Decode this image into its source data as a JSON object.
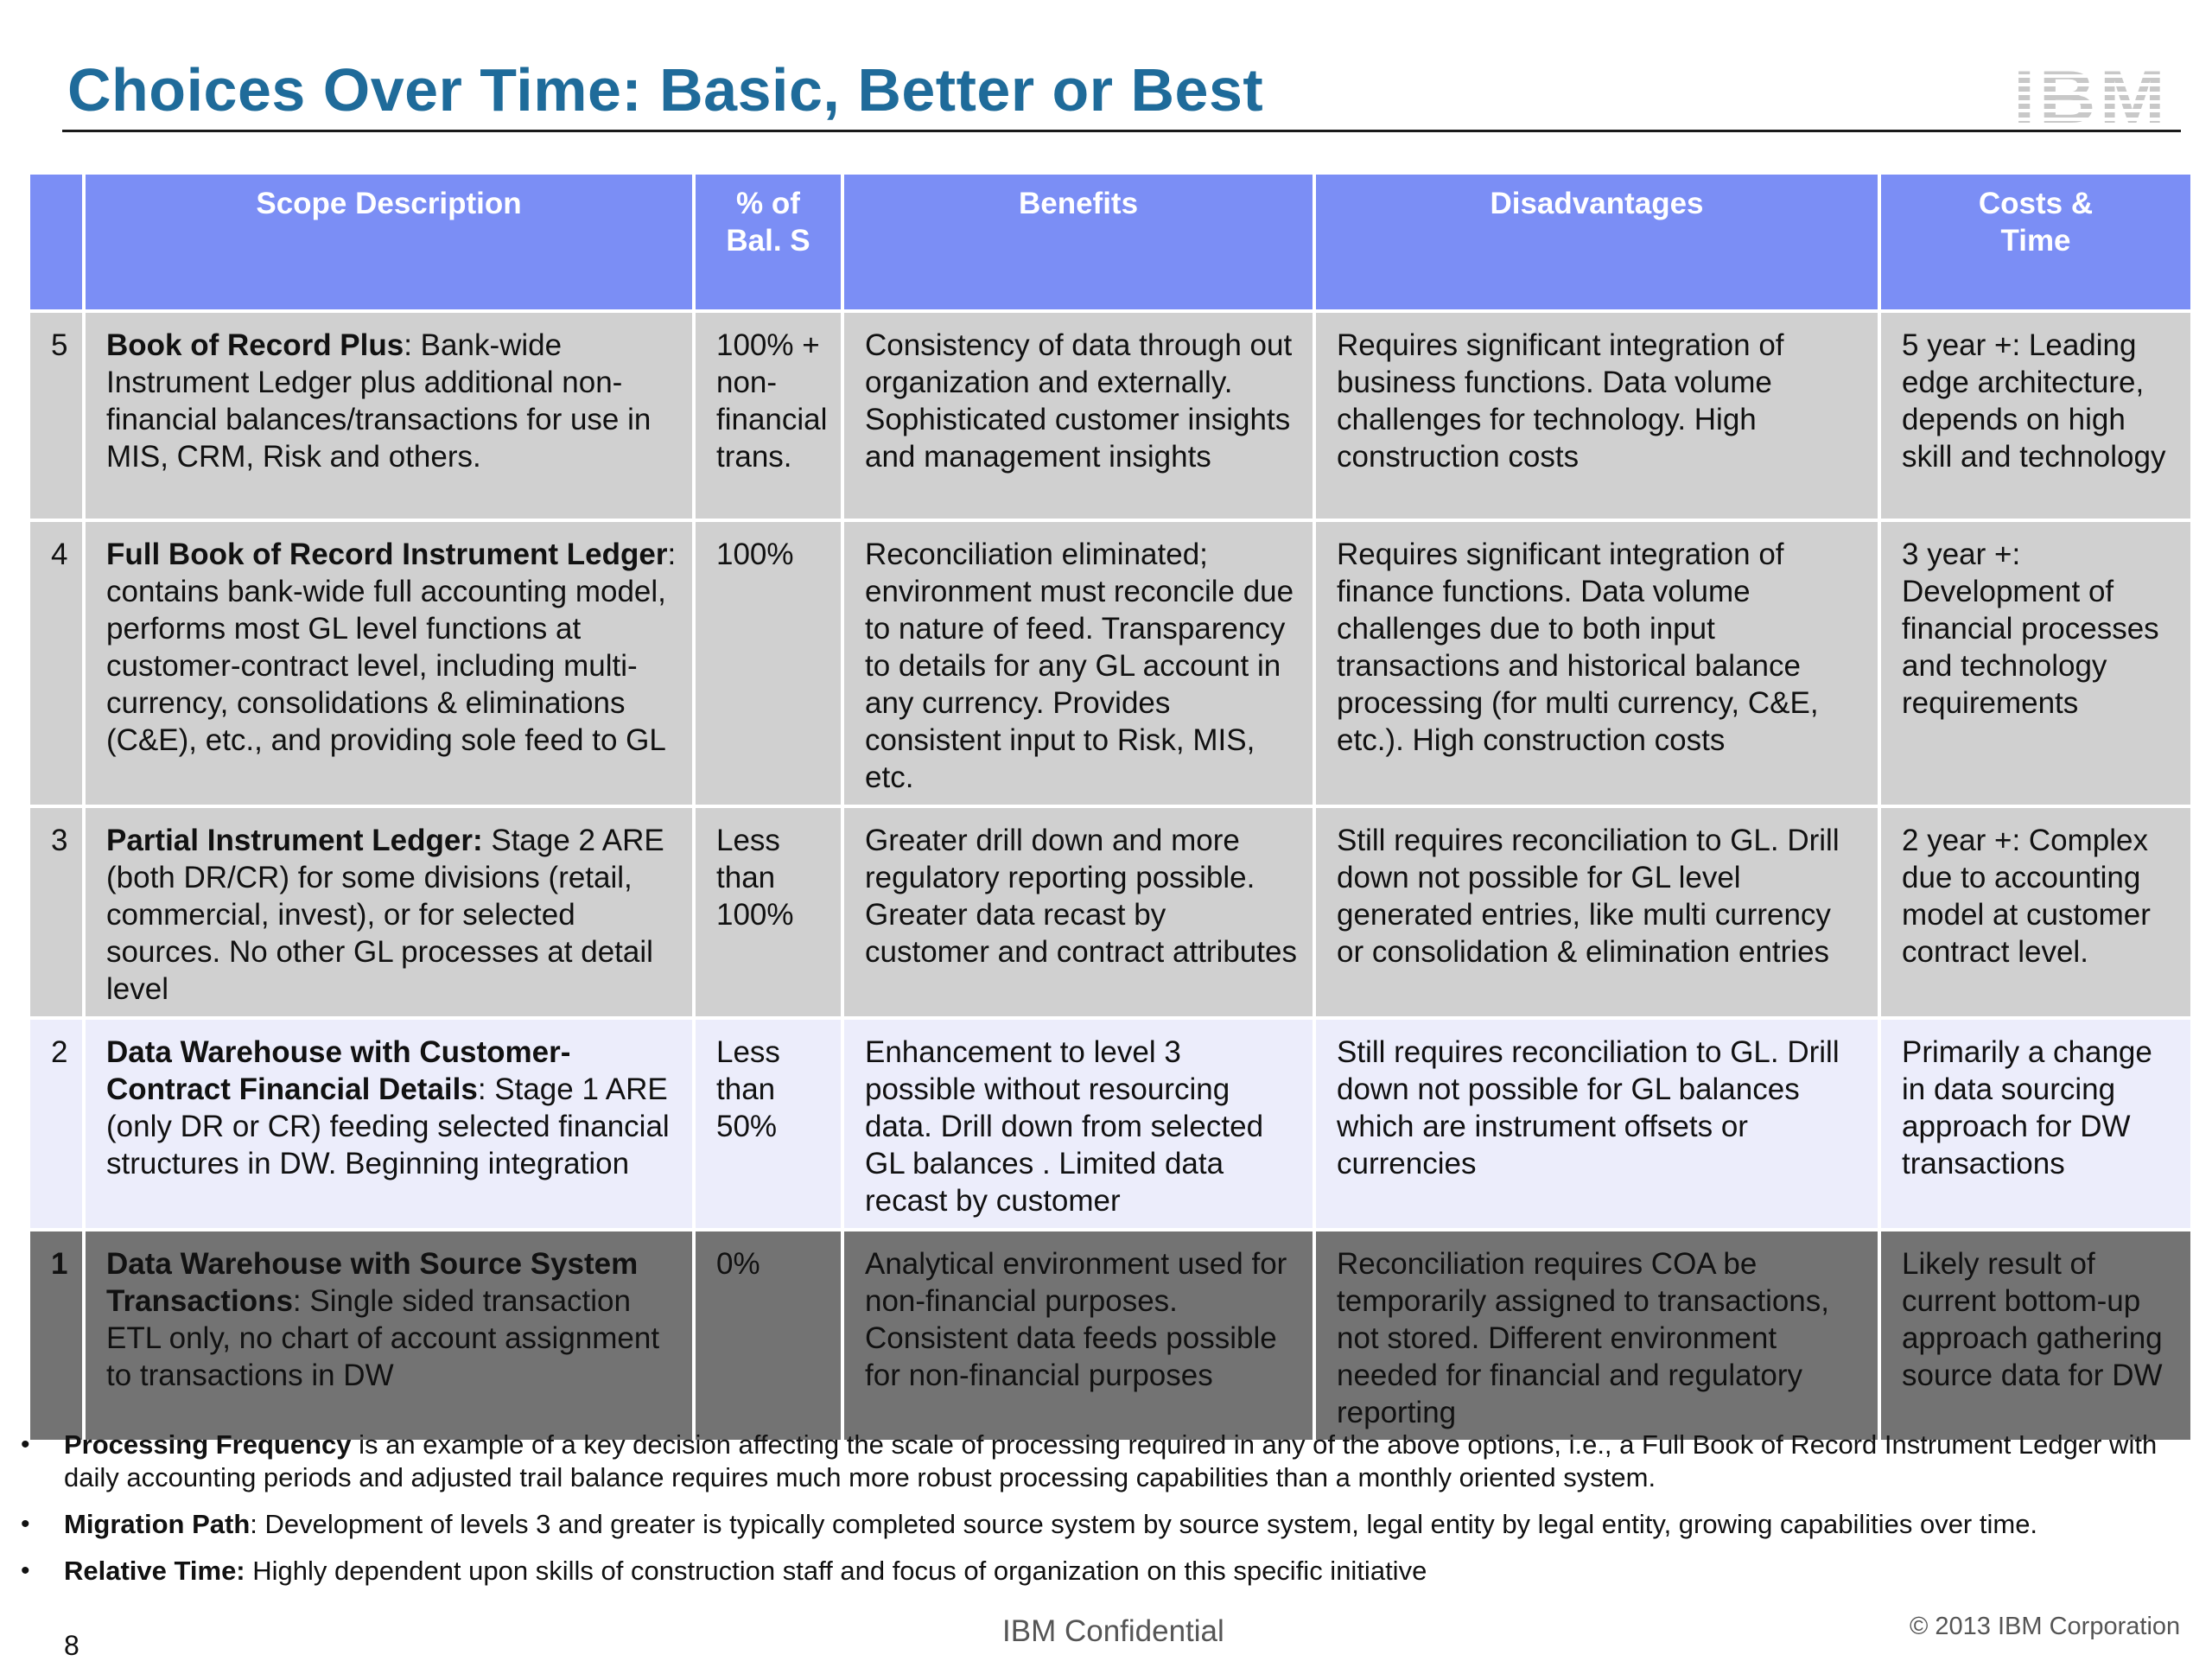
{
  "header": {
    "title": "Choices Over Time: Basic, Better or Best",
    "logo_text": "IBM"
  },
  "table": {
    "headers": {
      "level": "",
      "scope": "Scope Description",
      "pct_line1": "% of",
      "pct_line2": "Bal. S",
      "benefits": "Benefits",
      "disadvantages": "Disadvantages",
      "costs_line1": "Costs  &",
      "costs_line2": "Time"
    },
    "rows": [
      {
        "level": "5",
        "scope_title": "Book of Record  Plus",
        "scope_text": ":  Bank-wide Instrument Ledger plus additional  non-financial balances/transactions for use in MIS, CRM, Risk and others.",
        "pct": "100% + non-financial trans.",
        "benefits": "Consistency of data through out organization and externally.  Sophisticated customer insights and management insights",
        "disadvantages": "Requires significant integration of business functions.  Data volume challenges for technology.  High construction costs",
        "costs": "5 year +:  Leading edge architecture, depends on high skill  and technology"
      },
      {
        "level": "4",
        "scope_title": "Full Book of Record  Instrument Ledger",
        "scope_text": ":  contains bank-wide full accounting model, performs most GL level functions at customer-contract level, including multi-currency, consolidations & eliminations (C&E), etc., and providing sole feed to GL",
        "pct": "100%",
        "benefits": "Reconciliation eliminated; environment must reconcile due to nature of feed.  Transparency to details for any GL account in any currency.  Provides consistent input to Risk, MIS, etc.",
        "disadvantages": "Requires significant integration of finance functions.  Data volume challenges due to both input transactions and historical balance processing (for multi currency, C&E, etc.).  High construction costs",
        "costs": "3 year +: Development of financial processes and technology requirements"
      },
      {
        "level": "3",
        "scope_title": "Partial  Instrument Ledger:",
        "scope_text": "  Stage 2 ARE (both DR/CR) for some divisions (retail, commercial,  invest), or for selected sources.  No other GL processes at detail level",
        "pct": "Less than 100%",
        "benefits": "Greater drill down and more regulatory reporting possible.  Greater data recast by customer and contract attributes",
        "disadvantages": "Still requires reconciliation to GL. Drill down not possible for GL level generated entries, like multi currency or consolidation & elimination entries",
        "costs": "2 year +: Complex due to accounting model at customer contract level."
      },
      {
        "level": "2",
        "scope_title": "Data Warehouse with Customer-Contract Financial Details",
        "scope_text": ":  Stage 1 ARE (only DR or CR) feeding  selected financial structures in DW.  Beginning integration",
        "pct": "Less than 50%",
        "benefits": "Enhancement  to level 3 possible without resourcing data.  Drill down from selected GL balances .   Limited data recast by customer",
        "disadvantages": "Still requires reconciliation to GL.  Drill down not possible for GL balances which are instrument offsets or currencies",
        "costs": "Primarily a change in data sourcing approach for DW transactions"
      },
      {
        "level": "1",
        "scope_title": "Data Warehouse with Source System Transactions",
        "scope_text": ":  Single sided transaction ETL only, no chart of account assignment to transactions in  DW",
        "pct": "0%",
        "benefits": "Analytical environment used for non-financial purposes.  Consistent data feeds possible for non-financial purposes",
        "disadvantages": "Reconciliation requires COA be temporarily assigned to transactions, not stored.  Different environment needed for financial and regulatory reporting",
        "costs": "Likely result of current bottom-up approach gathering source data for DW"
      }
    ]
  },
  "notes": [
    {
      "bullet": "•",
      "label": "Processing Frequency",
      "text": "  is an example of a key decision affecting the scale of processing required in any of the above options, i.e., a Full Book of Record  Instrument Ledger with daily accounting periods and adjusted trail balance requires much more robust processing capabilities than a monthly oriented system."
    },
    {
      "bullet": "•",
      "label": "Migration Path",
      "text": ":  Development of levels 3 and greater is typically completed source system by source system, legal entity by legal entity, growing capabilities over time."
    },
    {
      "bullet": "•",
      "label": "Relative Time:",
      "text": "  Highly dependent upon skills of construction staff and focus of organization on this specific initiative"
    }
  ],
  "footer": {
    "page_number": "8",
    "confidential": "IBM Confidential",
    "copyright": "© 2013 IBM Corporation"
  }
}
